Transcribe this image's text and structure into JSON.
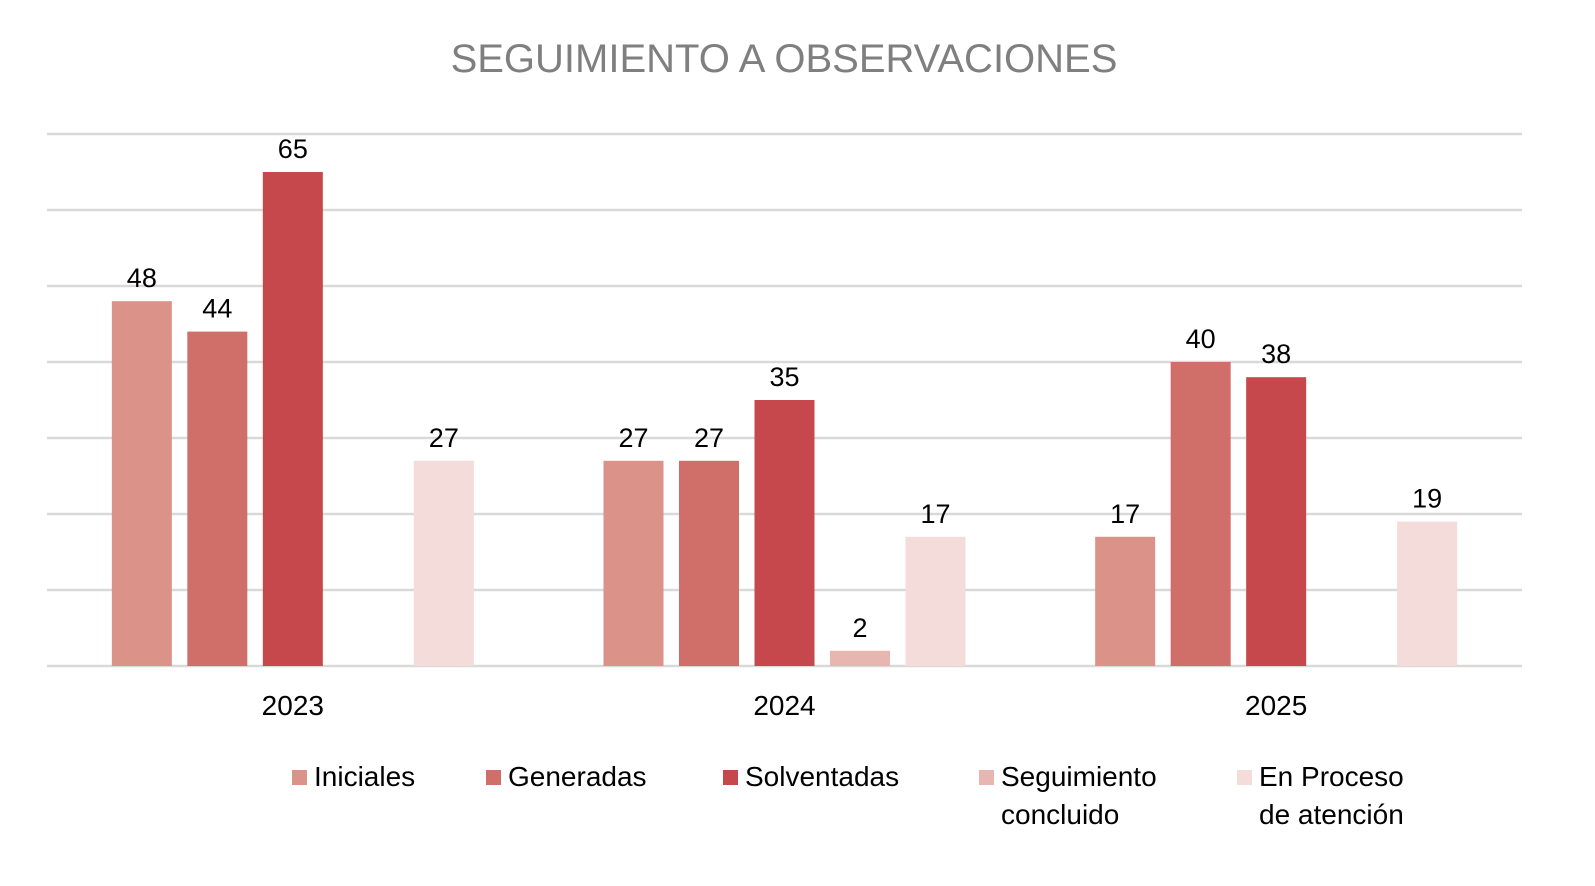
{
  "chart_data": {
    "type": "bar",
    "title": "SEGUIMIENTO A OBSERVACIONES",
    "xlabel": "",
    "ylabel": "",
    "categories": [
      "2023",
      "2024",
      "2025"
    ],
    "ylim": [
      0,
      70
    ],
    "y_grid_step": 10,
    "grid": true,
    "y_tick_labels_visible": false,
    "legend_position": "bottom",
    "series": [
      {
        "name": "Iniciales",
        "color": "#DB9288",
        "values": [
          48,
          27,
          17
        ]
      },
      {
        "name": "Generadas",
        "color": "#D06E69",
        "values": [
          44,
          27,
          40
        ]
      },
      {
        "name": "Solventadas",
        "color": "#C6474C",
        "values": [
          65,
          35,
          38
        ]
      },
      {
        "name": "Seguimiento concluido",
        "color": "#E8B6B1",
        "values": [
          null,
          2,
          null
        ]
      },
      {
        "name": "En Proceso de  atención",
        "color": "#F3DCD9",
        "values": [
          27,
          17,
          19
        ]
      }
    ]
  },
  "legend": [
    {
      "label": "Iniciales",
      "color": "#DB9288"
    },
    {
      "label": "Generadas",
      "color": "#D06E69"
    },
    {
      "label": "Solventadas",
      "color": "#C6474C"
    },
    {
      "label": "Seguimiento\nconcluido",
      "color": "#E8B6B1"
    },
    {
      "label": "En Proceso\nde  atención",
      "color": "#F3DCD9"
    }
  ],
  "colors": {
    "title": "#7F7F7F",
    "gridline": "#D9D9D9"
  }
}
